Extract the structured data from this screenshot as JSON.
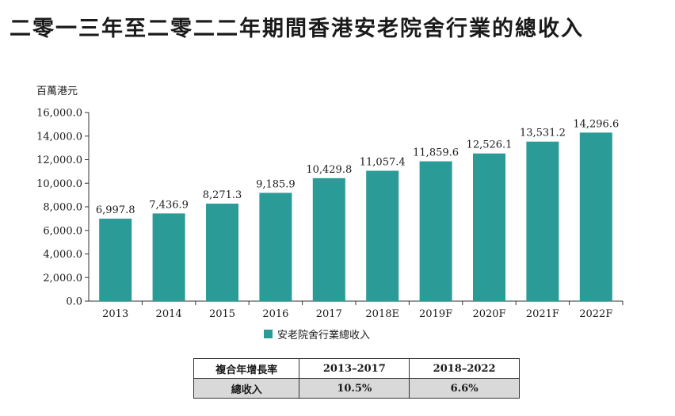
{
  "title": "二零一三年至二零二二年期間香港安老院舍行業的總收入",
  "chart_data": {
    "type": "bar",
    "ylabel": "百萬港元",
    "ylim": [
      0,
      16000
    ],
    "yticks": [
      "0.0",
      "2,000.0",
      "4,000.0",
      "6,000.0",
      "8,000.0",
      "10,000.0",
      "12,000.0",
      "14,000.0",
      "16,000.0"
    ],
    "categories": [
      "2013",
      "2014",
      "2015",
      "2016",
      "2017",
      "2018E",
      "2019F",
      "2020F",
      "2021F",
      "2022F"
    ],
    "series": [
      {
        "name": "安老院舍行業總收入",
        "values": [
          6997.8,
          7436.9,
          8271.3,
          9185.9,
          10429.8,
          11057.4,
          11859.6,
          12526.1,
          13531.2,
          14296.6
        ],
        "labels": [
          "6,997.8",
          "7,436.9",
          "8,271.3",
          "9,185.9",
          "10,429.8",
          "11,057.4",
          "11,859.6",
          "12,526.1",
          "13,531.2",
          "14,296.6"
        ],
        "color": "#2a9b96"
      }
    ],
    "grid": false,
    "legend": "bottom-center"
  },
  "cagr_table": {
    "header": [
      "複合年增長率",
      "2013–2017",
      "2018–2022"
    ],
    "row": [
      "總收入",
      "10.5%",
      "6.6%"
    ]
  }
}
